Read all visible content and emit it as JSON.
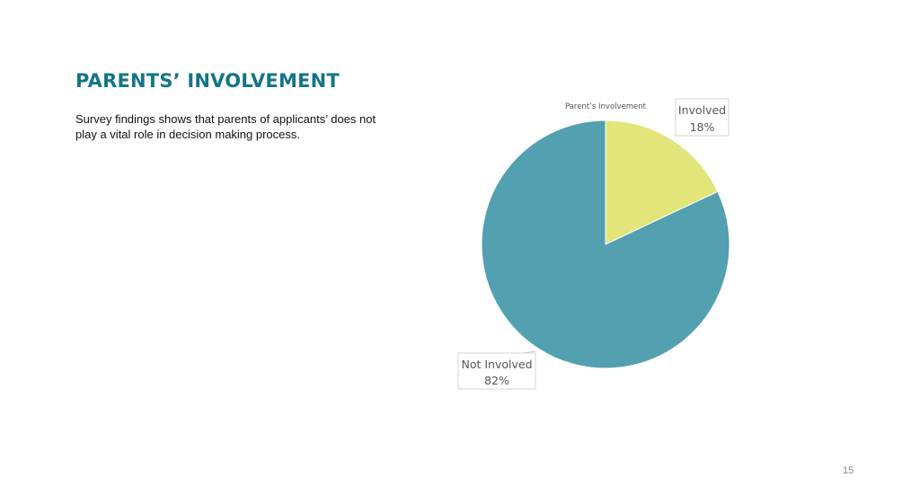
{
  "slide": {
    "title": "PARENTS’ INVOLVEMENT",
    "body": "Survey findings shows that parents of applicants’ does not play a vital role in decision making process.",
    "page_number": "15"
  },
  "chart_data": {
    "type": "pie",
    "title": "Parent’s Involvement",
    "slices": [
      {
        "label": "Involved",
        "value": 18,
        "display": "18%",
        "color": "#e2e579"
      },
      {
        "label": "Not Involved",
        "value": 82,
        "display": "82%",
        "color": "#52a0b0"
      }
    ],
    "start_angle": "12 o'clock, clockwise",
    "legend": "none (data callouts)"
  }
}
